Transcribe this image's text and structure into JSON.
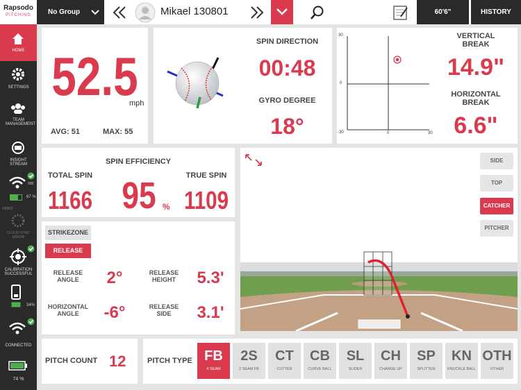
{
  "sidebar": {
    "brand": "Rapsodo",
    "brand_sub": "PITCHING",
    "home": "HOME",
    "settings": "SETTINGS",
    "team": "TEAM MANAGEMENT",
    "insight": "INSIGHT STREAM",
    "wifi_code": "000",
    "battery_1": "67 %",
    "video": "VIDEO",
    "cloud": "CLOUD SYNC ERROR",
    "calibration": "CALIBRATION SUCCESSFUL",
    "battery_2": "34%",
    "connected": "CONNECTED",
    "battery_3": "74 %"
  },
  "topbar": {
    "group": "No Group",
    "player": "Mikael 130801",
    "distance": "60'6\"",
    "history": "HISTORY"
  },
  "velocity": {
    "value": "52.5",
    "unit": "mph",
    "avg_label": "AVG:",
    "avg": "51",
    "max_label": "MAX:",
    "max": "55"
  },
  "spin": {
    "direction_label": "SPIN DIRECTION",
    "direction": "00:48",
    "gyro_label": "GYRO DEGREE",
    "gyro": "18°"
  },
  "break": {
    "y_top": "30",
    "y_mid": "0",
    "y_bottom": "-30",
    "x_mid": "0",
    "x_right": "30",
    "vertical_label": "VERTICAL BREAK",
    "vertical": "14.9\"",
    "horizontal_label": "HORIZONTAL BREAK",
    "horizontal": "6.6\""
  },
  "spin_efficiency": {
    "title": "SPIN EFFICIENCY",
    "total_label": "TOTAL SPIN",
    "total": "1166",
    "percent": "95",
    "percent_unit": "%",
    "true_label": "TRUE SPIN",
    "true_spin": "1109"
  },
  "release": {
    "tab_strikezone": "STRIKEZONE",
    "tab_release": "RELEASE",
    "items": [
      {
        "label": "RELEASE ANGLE",
        "value": "2°"
      },
      {
        "label": "RELEASE HEIGHT",
        "value": "5.3'"
      },
      {
        "label": "HORIZONTAL ANGLE",
        "value": "-6°"
      },
      {
        "label": "RELEASE SIDE",
        "value": "3.1'"
      }
    ]
  },
  "view": {
    "buttons": [
      "SIDE",
      "TOP",
      "CATCHER",
      "PITCHER"
    ]
  },
  "pitch_count": {
    "label": "PITCH COUNT",
    "value": "12"
  },
  "pitch_type": {
    "label": "PITCH TYPE",
    "types": [
      {
        "code": "FB",
        "name": "4 SEAM"
      },
      {
        "code": "2S",
        "name": "2 SEAM FB"
      },
      {
        "code": "CT",
        "name": "CUTTER"
      },
      {
        "code": "CB",
        "name": "CURVE BALL"
      },
      {
        "code": "SL",
        "name": "SLIDER"
      },
      {
        "code": "CH",
        "name": "CHANGE UP"
      },
      {
        "code": "SP",
        "name": "SPLITTER"
      },
      {
        "code": "KN",
        "name": "KNUCKLE BALL"
      },
      {
        "code": "OTH",
        "name": "OTHER"
      }
    ]
  }
}
